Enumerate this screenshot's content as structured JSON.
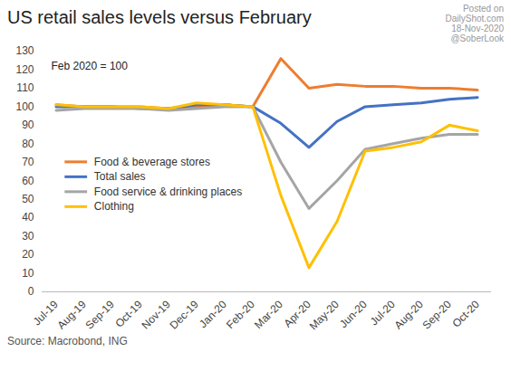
{
  "chart_data": {
    "type": "line",
    "title": "US retail sales levels versus February",
    "annotations": [
      "Feb 2020 = 100"
    ],
    "watermark": [
      "Posted on",
      "DailyShot.com",
      "18-Nov-2020",
      "@SoberLook"
    ],
    "source": "Source: Macrobond, ING",
    "categories": [
      "Jul-19",
      "Aug-19",
      "Sep-19",
      "Oct-19",
      "Nov-19",
      "Dec-19",
      "Jan-20",
      "Feb-20",
      "Mar-20",
      "Apr-20",
      "May-20",
      "Jun-20",
      "Jul-20",
      "Aug-20",
      "Sep-20",
      "Oct-20"
    ],
    "series": [
      {
        "name": "Food & beverage stores",
        "color": "#ED7D31",
        "values": [
          101,
          100,
          100,
          100,
          99,
          100,
          101,
          100,
          126,
          110,
          112,
          111,
          111,
          110,
          110,
          109
        ]
      },
      {
        "name": "Total sales",
        "color": "#4472C4",
        "values": [
          100,
          100,
          100,
          99,
          99,
          101,
          101,
          100,
          91,
          78,
          92,
          100,
          101,
          102,
          104,
          105
        ]
      },
      {
        "name": "Food service & drinking places",
        "color": "#A5A5A5",
        "values": [
          98,
          99,
          99,
          99,
          98,
          99,
          100,
          100,
          70,
          45,
          60,
          77,
          80,
          83,
          85,
          85
        ]
      },
      {
        "name": "Clothing",
        "color": "#FFC000",
        "values": [
          101,
          100,
          100,
          100,
          99,
          102,
          101,
          100,
          52,
          13,
          38,
          76,
          78,
          81,
          90,
          87
        ]
      }
    ],
    "ylim": [
      0,
      130
    ],
    "yticks": [
      0,
      10,
      20,
      30,
      40,
      50,
      60,
      70,
      80,
      90,
      100,
      110,
      120,
      130
    ],
    "grid": false,
    "legend": "left"
  }
}
